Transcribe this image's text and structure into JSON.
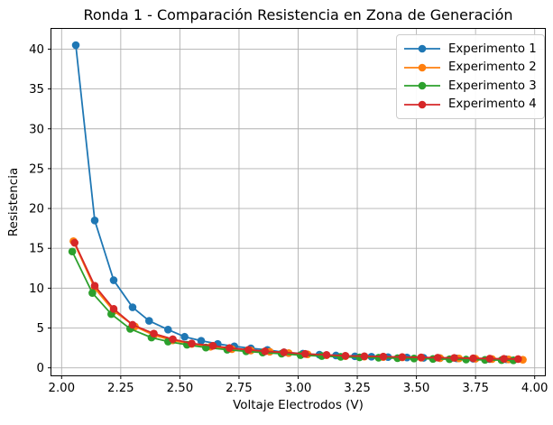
{
  "chart_data": {
    "type": "line",
    "title": "Ronda 1 - Comparación Resistencia en Zona de Generación",
    "xlabel": "Voltaje Electrodos (V)",
    "ylabel": "Resistencia",
    "xlim": [
      1.955,
      4.045
    ],
    "ylim": [
      -1.0,
      42.6
    ],
    "grid": true,
    "grid_color": "#b0b0b0",
    "axis_color": "#000000",
    "legend_position": "upper right",
    "xticks": {
      "values": [
        2.0,
        2.25,
        2.5,
        2.75,
        3.0,
        3.25,
        3.5,
        3.75,
        4.0
      ],
      "labels": [
        "2.00",
        "2.25",
        "2.50",
        "2.75",
        "3.00",
        "3.25",
        "3.50",
        "3.75",
        "4.00"
      ]
    },
    "yticks": {
      "values": [
        0,
        5,
        10,
        15,
        20,
        25,
        30,
        35,
        40
      ],
      "labels": [
        "0",
        "5",
        "10",
        "15",
        "20",
        "25",
        "30",
        "35",
        "40"
      ]
    },
    "series": [
      {
        "name": "Experimento 1",
        "color": "#1f77b4",
        "marker": "o",
        "x": [
          2.06,
          2.14,
          2.22,
          2.3,
          2.37,
          2.45,
          2.52,
          2.59,
          2.66,
          2.73,
          2.8,
          2.87,
          2.94,
          3.02,
          3.09,
          3.16,
          3.24,
          3.31,
          3.38,
          3.46,
          3.53,
          3.6,
          3.67,
          3.74,
          3.81,
          3.88
        ],
        "y": [
          40.5,
          18.5,
          11.0,
          7.6,
          5.9,
          4.8,
          3.9,
          3.4,
          3.0,
          2.7,
          2.45,
          2.25,
          1.95,
          1.78,
          1.65,
          1.55,
          1.45,
          1.4,
          1.35,
          1.3,
          1.26,
          1.22,
          1.18,
          1.14,
          1.1,
          1.07
        ]
      },
      {
        "name": "Experimento 2",
        "color": "#ff7f0e",
        "marker": "o",
        "x": [
          2.05,
          2.14,
          2.22,
          2.31,
          2.39,
          2.47,
          2.55,
          2.63,
          2.72,
          2.8,
          2.88,
          2.96,
          3.04,
          3.12,
          3.2,
          3.28,
          3.36,
          3.44,
          3.52,
          3.6,
          3.68,
          3.75,
          3.82,
          3.89,
          3.95
        ],
        "y": [
          15.9,
          10.0,
          7.15,
          5.2,
          4.1,
          3.45,
          3.0,
          2.65,
          2.35,
          2.18,
          2.02,
          1.85,
          1.7,
          1.58,
          1.47,
          1.41,
          1.36,
          1.31,
          1.27,
          1.22,
          1.18,
          1.14,
          1.1,
          1.06,
          1.02
        ]
      },
      {
        "name": "Experimento 3",
        "color": "#2ca02c",
        "marker": "o",
        "x": [
          2.045,
          2.13,
          2.21,
          2.29,
          2.38,
          2.45,
          2.53,
          2.61,
          2.7,
          2.78,
          2.85,
          2.93,
          3.01,
          3.1,
          3.18,
          3.26,
          3.34,
          3.42,
          3.49,
          3.57,
          3.64,
          3.71,
          3.79,
          3.86,
          3.91
        ],
        "y": [
          14.6,
          9.4,
          6.75,
          4.9,
          3.8,
          3.3,
          2.9,
          2.55,
          2.28,
          2.08,
          1.92,
          1.78,
          1.6,
          1.48,
          1.38,
          1.32,
          1.27,
          1.21,
          1.17,
          1.12,
          1.08,
          1.04,
          1.0,
          0.97,
          0.95
        ]
      },
      {
        "name": "Experimento 4",
        "color": "#d62728",
        "marker": "o",
        "x": [
          2.055,
          2.14,
          2.22,
          2.3,
          2.39,
          2.47,
          2.55,
          2.64,
          2.71,
          2.79,
          2.86,
          2.94,
          3.03,
          3.12,
          3.2,
          3.28,
          3.36,
          3.44,
          3.52,
          3.59,
          3.66,
          3.74,
          3.81,
          3.87,
          3.93
        ],
        "y": [
          15.7,
          10.3,
          7.4,
          5.4,
          4.3,
          3.6,
          3.06,
          2.77,
          2.49,
          2.27,
          2.08,
          1.95,
          1.75,
          1.63,
          1.51,
          1.46,
          1.41,
          1.36,
          1.31,
          1.28,
          1.25,
          1.2,
          1.16,
          1.13,
          1.1
        ]
      }
    ]
  }
}
